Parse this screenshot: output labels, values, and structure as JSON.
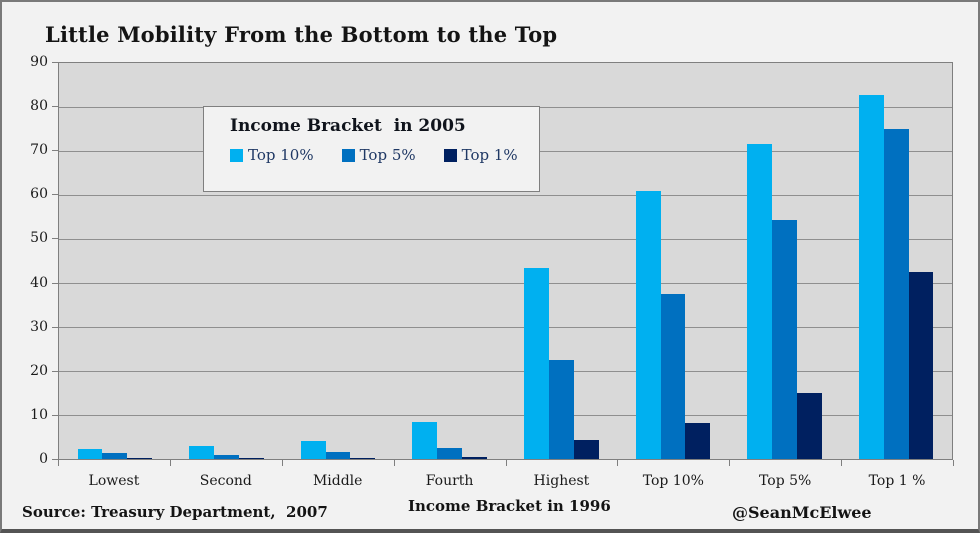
{
  "title": "Little Mobility From the Bottom to the Top",
  "legend": {
    "title": "Income Bracket  in 2005"
  },
  "footer": {
    "source": "Source: Treasury Department,  2007",
    "attribution": "@SeanMcElwee"
  },
  "colors": {
    "series_top10": "#00B0F0",
    "series_top5": "#0070C0",
    "series_top1": "#002060",
    "plot_background": "#D9D9D9",
    "canvas_background": "#F2F2F2",
    "gridline": "#8f8f8f"
  },
  "chart_data": {
    "type": "bar",
    "title": "Little Mobility From the Bottom to the Top",
    "xlabel": "Income Bracket in 1996",
    "ylabel": "",
    "categories": [
      "Lowest",
      "Second",
      "Middle",
      "Fourth",
      "Highest",
      "Top 10%",
      "Top 5%",
      "Top 1 %"
    ],
    "series": [
      {
        "name": "Top 10%",
        "color": "#00B0F0",
        "values": [
          2.3,
          2.9,
          4.2,
          8.5,
          43.3,
          61.0,
          71.5,
          82.8
        ]
      },
      {
        "name": "Top 5%",
        "color": "#0070C0",
        "values": [
          1.3,
          1.0,
          1.5,
          2.5,
          22.5,
          37.4,
          54.4,
          75.0
        ]
      },
      {
        "name": "Top 1%",
        "color": "#002060",
        "values": [
          0.2,
          0.2,
          0.3,
          0.4,
          4.4,
          8.2,
          15.1,
          42.5
        ]
      }
    ],
    "ylim": [
      0,
      90
    ],
    "ytick_interval": 10,
    "grid": true,
    "legend_title": "Income Bracket  in 2005",
    "legend_position": "upper-left-inside-plot"
  }
}
